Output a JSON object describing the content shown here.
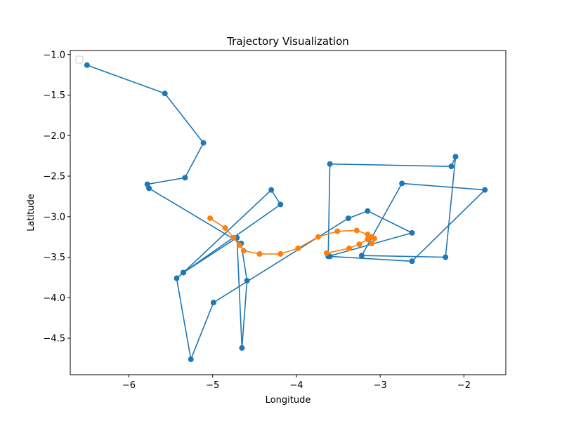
{
  "chart_data": {
    "type": "line",
    "title": "Trajectory Visualization",
    "xlabel": "Longitude",
    "ylabel": "Latitude",
    "xlim": [
      -6.7,
      -1.5
    ],
    "ylim": [
      -4.95,
      -0.95
    ],
    "xticks": [
      -6,
      -5,
      -4,
      -3,
      -2
    ],
    "yticks": [
      -1.0,
      -1.5,
      -2.0,
      -2.5,
      -3.0,
      -3.5,
      -4.0,
      -4.5
    ],
    "xtick_labels": [
      "−6",
      "−5",
      "−4",
      "−3",
      "−2"
    ],
    "ytick_labels": [
      "−1.0",
      "−1.5",
      "−2.0",
      "−2.5",
      "−3.0",
      "−3.5",
      "−4.0",
      "−4.5"
    ],
    "grid": false,
    "legend": {
      "location": "upper-left",
      "entries": []
    },
    "series": [
      {
        "color": "#1f77b4",
        "marker": "circle",
        "x": [
          -6.5,
          -5.57,
          -5.11,
          -5.33,
          -5.78,
          -5.76,
          -4.66,
          -4.59
        ],
        "y": [
          -1.13,
          -1.48,
          -2.09,
          -2.52,
          -2.6,
          -2.65,
          -3.33,
          -3.79
        ],
        "x_continued": [
          -4.65,
          -4.71,
          -5.35,
          -4.19,
          -4.3,
          -5.35,
          -5.43,
          -5.26,
          -4.99,
          -3.38,
          -3.15,
          -2.62,
          -3.62,
          -3.6,
          -2.15,
          -2.1,
          -2.22,
          -3.22,
          -2.74,
          -1.75,
          -2.62,
          -3.6
        ],
        "y_continued": [
          -4.62,
          -3.26,
          -3.69,
          -2.85,
          -2.67,
          -3.69,
          -3.76,
          -4.76,
          -4.06,
          -3.02,
          -2.93,
          -3.2,
          -3.49,
          -2.35,
          -2.38,
          -2.26,
          -3.5,
          -3.48,
          -2.59,
          -2.67,
          -3.55,
          -3.49
        ]
      },
      {
        "color": "#ff7f0e",
        "marker": "circle",
        "x": [
          -5.03,
          -4.85,
          -4.75,
          -4.68,
          -4.63,
          -4.44,
          -4.19,
          -3.98,
          -3.74,
          -3.51,
          -3.28,
          -3.15,
          -3.1,
          -3.07,
          -3.1,
          -3.15,
          -3.25,
          -3.37,
          -3.64
        ],
        "y": [
          -3.02,
          -3.14,
          -3.26,
          -3.35,
          -3.42,
          -3.46,
          -3.46,
          -3.39,
          -3.25,
          -3.18,
          -3.17,
          -3.22,
          -3.25,
          -3.27,
          -3.33,
          -3.28,
          -3.34,
          -3.39,
          -3.45
        ]
      }
    ]
  }
}
